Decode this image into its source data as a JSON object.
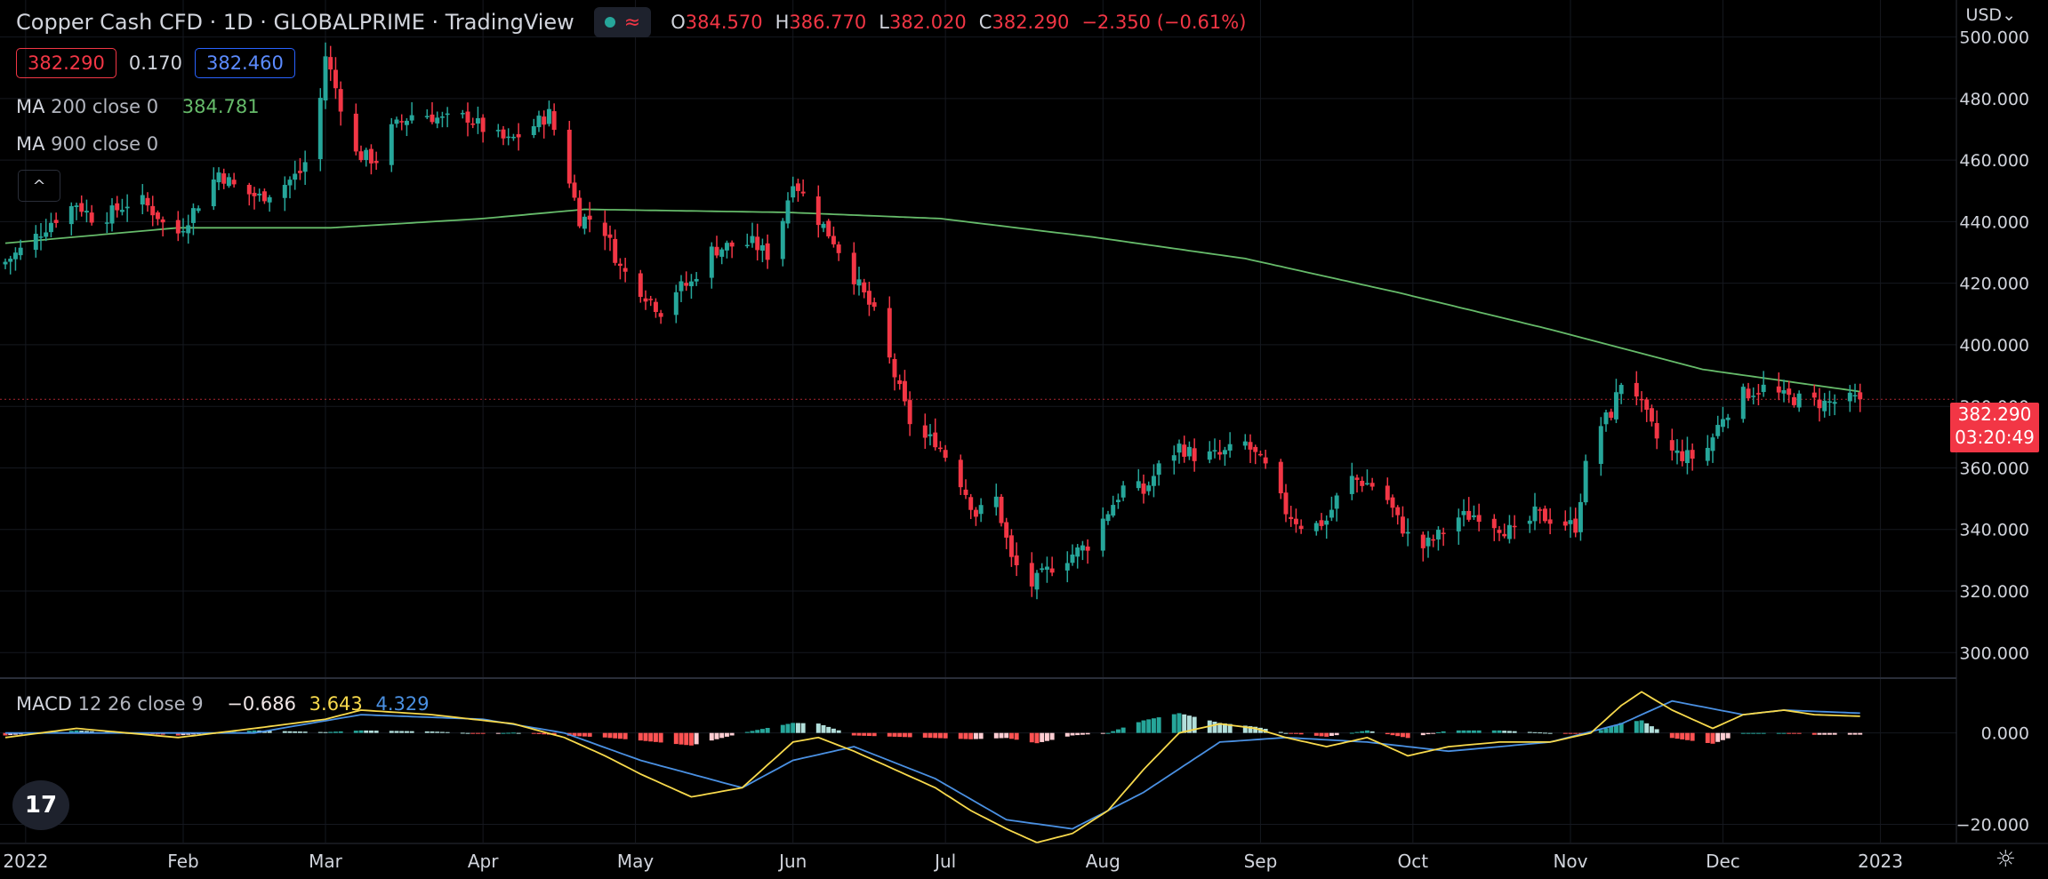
{
  "header": {
    "title": "Copper Cash CFD · 1D · GLOBALPRIME · TradingView",
    "ohlc": [
      {
        "key": "O",
        "value": "384.570"
      },
      {
        "key": "H",
        "value": "386.770"
      },
      {
        "key": "L",
        "value": "382.020"
      },
      {
        "key": "C",
        "value": "382.290"
      },
      {
        "key": "",
        "value": "−2.350 (−0.61%)"
      }
    ],
    "bid": "382.290",
    "spread": "0.170",
    "ask": "382.460",
    "currency": "USD⌄"
  },
  "indicators": {
    "ma200": {
      "name": "MA",
      "params": "200 close 0",
      "value": "384.781",
      "color": "#66bb6a"
    },
    "ma900": {
      "name": "MA",
      "params": "900 close 0",
      "value": ""
    },
    "collapse": "^"
  },
  "macd_legend": {
    "name": "MACD",
    "params": "12 26 close 9",
    "hist": "−0.686",
    "macd": "3.643",
    "signal": "4.329"
  },
  "last_price": {
    "price": "382.290",
    "countdown": "03:20:49"
  },
  "logo": "17",
  "colors": {
    "up": "#26a69a",
    "down": "#f23645",
    "ma": "#66bb6a",
    "macd_line": "#f7d94c",
    "signal_line": "#4a90e2",
    "grid": "#15181f"
  },
  "chart_data": [
    {
      "type": "candlestick",
      "title": "Copper Cash CFD · 1D · GLOBALPRIME · TradingView",
      "xlabel": "",
      "ylabel": "",
      "ylim": [
        292,
        512
      ],
      "yticks": [
        "500.000",
        "480.000",
        "460.000",
        "440.000",
        "420.000",
        "400.000",
        "380.000",
        "360.000",
        "340.000",
        "320.000",
        "300.000"
      ],
      "ytick_values": [
        500,
        480,
        460,
        440,
        420,
        400,
        380,
        360,
        340,
        320,
        300
      ],
      "xticks": [
        "2022",
        "Feb",
        "Mar",
        "Apr",
        "May",
        "Jun",
        "Jul",
        "Aug",
        "Sep",
        "Oct",
        "Nov",
        "Dec",
        "2023"
      ],
      "xtick_days": [
        0,
        31,
        59,
        90,
        120,
        151,
        181,
        212,
        243,
        273,
        304,
        334,
        365
      ],
      "x_start_day": -4,
      "close_keypoints": [
        [
          -4,
          427
        ],
        [
          0,
          432
        ],
        [
          5,
          440
        ],
        [
          10,
          446
        ],
        [
          14,
          440
        ],
        [
          18,
          444
        ],
        [
          22,
          448
        ],
        [
          26,
          442
        ],
        [
          29,
          434
        ],
        [
          34,
          446
        ],
        [
          38,
          456
        ],
        [
          42,
          450
        ],
        [
          46,
          448
        ],
        [
          50,
          451
        ],
        [
          54,
          456
        ],
        [
          57,
          466
        ],
        [
          59,
          494
        ],
        [
          62,
          478
        ],
        [
          65,
          462
        ],
        [
          69,
          460
        ],
        [
          72,
          470
        ],
        [
          77,
          476
        ],
        [
          82,
          473
        ],
        [
          87,
          474
        ],
        [
          91,
          469
        ],
        [
          95,
          466
        ],
        [
          99,
          470
        ],
        [
          103,
          475
        ],
        [
          106,
          460
        ],
        [
          109,
          441
        ],
        [
          113,
          441
        ],
        [
          117,
          425
        ],
        [
          121,
          418
        ],
        [
          125,
          411
        ],
        [
          128,
          418
        ],
        [
          131,
          420
        ],
        [
          134,
          430
        ],
        [
          138,
          432
        ],
        [
          143,
          433
        ],
        [
          147,
          428
        ],
        [
          151,
          454
        ],
        [
          155,
          443
        ],
        [
          159,
          434
        ],
        [
          163,
          422
        ],
        [
          167,
          410
        ],
        [
          171,
          390
        ],
        [
          175,
          370
        ],
        [
          179,
          369
        ],
        [
          183,
          359
        ],
        [
          187,
          345
        ],
        [
          191,
          350
        ],
        [
          194,
          330
        ],
        [
          198,
          322
        ],
        [
          202,
          328
        ],
        [
          205,
          331
        ],
        [
          209,
          335
        ],
        [
          213,
          346
        ],
        [
          217,
          356
        ],
        [
          220,
          352
        ],
        [
          223,
          360
        ],
        [
          227,
          367
        ],
        [
          230,
          364
        ],
        [
          235,
          364
        ],
        [
          240,
          368
        ],
        [
          244,
          360
        ],
        [
          248,
          346
        ],
        [
          252,
          340
        ],
        [
          256,
          343
        ],
        [
          260,
          357
        ],
        [
          264,
          355
        ],
        [
          267,
          353
        ],
        [
          270,
          343
        ],
        [
          274,
          333
        ],
        [
          278,
          338
        ],
        [
          282,
          344
        ],
        [
          286,
          345
        ],
        [
          290,
          341
        ],
        [
          294,
          338
        ],
        [
          297,
          345
        ],
        [
          301,
          343
        ],
        [
          305,
          341
        ],
        [
          308,
          370
        ],
        [
          312,
          378
        ],
        [
          315,
          393
        ],
        [
          318,
          380
        ],
        [
          322,
          366
        ],
        [
          326,
          364
        ],
        [
          330,
          363
        ],
        [
          334,
          377
        ],
        [
          338,
          384
        ],
        [
          342,
          386
        ],
        [
          346,
          383
        ],
        [
          350,
          382
        ],
        [
          354,
          381
        ],
        [
          358,
          382
        ],
        [
          361,
          382.29
        ]
      ],
      "ma200_keypoints": [
        [
          -4,
          433
        ],
        [
          30,
          438
        ],
        [
          60,
          438
        ],
        [
          90,
          441
        ],
        [
          110,
          444
        ],
        [
          150,
          443
        ],
        [
          180,
          441
        ],
        [
          210,
          435
        ],
        [
          240,
          428
        ],
        [
          270,
          417
        ],
        [
          300,
          405
        ],
        [
          330,
          392
        ],
        [
          361,
          384.781
        ]
      ],
      "last_close": 382.29
    },
    {
      "type": "macd",
      "title": "MACD 12 26 close 9",
      "ylim": [
        -24,
        12
      ],
      "yticks": [
        "0.000",
        "−20.000"
      ],
      "ytick_values": [
        0,
        -20
      ],
      "macd_keypoints": [
        [
          -4,
          -1
        ],
        [
          10,
          1
        ],
        [
          30,
          -1
        ],
        [
          45,
          1
        ],
        [
          59,
          3
        ],
        [
          66,
          5
        ],
        [
          80,
          4
        ],
        [
          96,
          2
        ],
        [
          106,
          -1
        ],
        [
          114,
          -5
        ],
        [
          121,
          -9
        ],
        [
          131,
          -14
        ],
        [
          141,
          -12
        ],
        [
          151,
          -2
        ],
        [
          156,
          -1
        ],
        [
          163,
          -4
        ],
        [
          171,
          -8
        ],
        [
          179,
          -12
        ],
        [
          186,
          -17
        ],
        [
          193,
          -21
        ],
        [
          199,
          -24
        ],
        [
          206,
          -22
        ],
        [
          213,
          -17
        ],
        [
          220,
          -8
        ],
        [
          227,
          0
        ],
        [
          235,
          2
        ],
        [
          242,
          1
        ],
        [
          248,
          -1
        ],
        [
          256,
          -3
        ],
        [
          264,
          -1
        ],
        [
          272,
          -5
        ],
        [
          280,
          -3
        ],
        [
          290,
          -2
        ],
        [
          300,
          -2
        ],
        [
          308,
          0
        ],
        [
          314,
          6
        ],
        [
          318,
          9
        ],
        [
          324,
          5
        ],
        [
          332,
          1
        ],
        [
          338,
          4
        ],
        [
          346,
          5
        ],
        [
          352,
          4
        ],
        [
          361,
          3.643
        ]
      ],
      "signal_keypoints": [
        [
          -4,
          0
        ],
        [
          20,
          0
        ],
        [
          45,
          0
        ],
        [
          66,
          4
        ],
        [
          90,
          3
        ],
        [
          106,
          0
        ],
        [
          121,
          -6
        ],
        [
          141,
          -12
        ],
        [
          151,
          -6
        ],
        [
          163,
          -3
        ],
        [
          179,
          -10
        ],
        [
          193,
          -19
        ],
        [
          206,
          -21
        ],
        [
          220,
          -13
        ],
        [
          235,
          -2
        ],
        [
          248,
          -1
        ],
        [
          264,
          -2
        ],
        [
          280,
          -4
        ],
        [
          300,
          -2
        ],
        [
          314,
          2
        ],
        [
          324,
          7
        ],
        [
          338,
          4
        ],
        [
          346,
          5
        ],
        [
          361,
          4.329
        ]
      ]
    }
  ]
}
